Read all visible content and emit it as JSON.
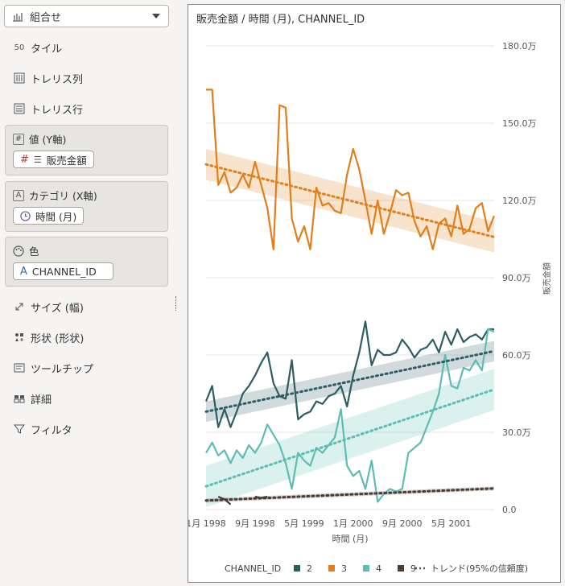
{
  "panel": {
    "chart_type": "組合せ",
    "rows": {
      "tile": "タイル",
      "trellis_col": "トレリス列",
      "trellis_row": "トレリス行",
      "size": "サイズ (幅)",
      "shape": "形状 (形状)",
      "tooltip": "ツールチップ",
      "detail": "詳細",
      "filter": "フィルタ"
    },
    "values_box": {
      "title": "値 (Y軸)",
      "pill": "販売金額"
    },
    "category_box": {
      "title": "カテゴリ (X軸)",
      "pill": "時間 (月)"
    },
    "color_box": {
      "title": "色",
      "pill": "CHANNEL_ID"
    }
  },
  "chart_data": {
    "type": "line",
    "title": "販売金額 / 時間 (月), CHANNEL_ID",
    "xlabel": "時間 (月)",
    "ylabel": "販売金額",
    "y_ticks": [
      "0.0",
      "30.0万",
      "60.0万",
      "90.0万",
      "120.0万",
      "150.0万",
      "180.0万"
    ],
    "ylim": [
      0,
      1800000
    ],
    "x_ticks": [
      {
        "label": "1月 1998",
        "index": 0
      },
      {
        "label": "9月 1998",
        "index": 8
      },
      {
        "label": "5月 1999",
        "index": 16
      },
      {
        "label": "1月 2000",
        "index": 24
      },
      {
        "label": "9月 2000",
        "index": 32
      },
      {
        "label": "5月 2001",
        "index": 40
      }
    ],
    "n_months": 48,
    "legend_title": "CHANNEL_ID",
    "trend_label": "トレンド(95%の信頼度)",
    "grid": true,
    "series": [
      {
        "name": "2",
        "color": "#2c5d63",
        "values": [
          420000,
          480000,
          320000,
          390000,
          320000,
          380000,
          450000,
          480000,
          520000,
          570000,
          610000,
          490000,
          440000,
          430000,
          580000,
          350000,
          370000,
          380000,
          420000,
          410000,
          440000,
          450000,
          480000,
          400000,
          520000,
          610000,
          730000,
          560000,
          620000,
          600000,
          600000,
          610000,
          660000,
          630000,
          590000,
          620000,
          630000,
          660000,
          610000,
          690000,
          640000,
          700000,
          650000,
          670000,
          680000,
          660000,
          700000,
          700000
        ],
        "trend": [
          380000,
          385000,
          390000,
          395000,
          400000,
          405000,
          410000,
          415000,
          420000,
          425000,
          430000,
          435000,
          440000,
          445000,
          450000,
          455000,
          460000,
          465000,
          470000,
          475000,
          480000,
          485000,
          490000,
          495000,
          500000,
          505000,
          510000,
          515000,
          520000,
          525000,
          530000,
          535000,
          540000,
          545000,
          550000,
          555000,
          560000,
          565000,
          570000,
          575000,
          580000,
          585000,
          590000,
          595000,
          600000,
          605000,
          610000,
          615000
        ]
      },
      {
        "name": "3",
        "color": "#e07f1b",
        "values": [
          1630000,
          1630000,
          1260000,
          1310000,
          1230000,
          1250000,
          1300000,
          1250000,
          1350000,
          1260000,
          1170000,
          1010000,
          1570000,
          1560000,
          1130000,
          1040000,
          1100000,
          1010000,
          1250000,
          1180000,
          1190000,
          1160000,
          1150000,
          1300000,
          1400000,
          1320000,
          1200000,
          1070000,
          1200000,
          1070000,
          1150000,
          1240000,
          1220000,
          1230000,
          1120000,
          1060000,
          1100000,
          1010000,
          1110000,
          1130000,
          1060000,
          1180000,
          1070000,
          1090000,
          1170000,
          1190000,
          1080000,
          1140000
        ],
        "trend": [
          1340000,
          1334000,
          1328000,
          1322000,
          1316000,
          1310000,
          1304000,
          1298000,
          1292000,
          1286000,
          1280000,
          1274000,
          1268000,
          1262000,
          1256000,
          1250000,
          1244000,
          1238000,
          1232000,
          1226000,
          1220000,
          1214000,
          1208000,
          1202000,
          1196000,
          1190000,
          1184000,
          1178000,
          1172000,
          1166000,
          1160000,
          1154000,
          1148000,
          1142000,
          1136000,
          1130000,
          1124000,
          1118000,
          1112000,
          1106000,
          1100000,
          1094000,
          1088000,
          1082000,
          1076000,
          1070000,
          1064000,
          1058000
        ]
      },
      {
        "name": "4",
        "color": "#5dbdb3",
        "values": [
          220000,
          260000,
          210000,
          230000,
          180000,
          230000,
          200000,
          250000,
          220000,
          260000,
          330000,
          290000,
          250000,
          180000,
          80000,
          220000,
          190000,
          170000,
          240000,
          220000,
          250000,
          280000,
          390000,
          170000,
          130000,
          150000,
          80000,
          190000,
          30000,
          60000,
          80000,
          70000,
          80000,
          220000,
          240000,
          260000,
          320000,
          380000,
          450000,
          600000,
          480000,
          470000,
          550000,
          540000,
          580000,
          540000,
          700000,
          690000
        ],
        "trend": [
          90000,
          98000,
          106000,
          114000,
          122000,
          130000,
          138000,
          146000,
          154000,
          162000,
          170000,
          178000,
          186000,
          194000,
          202000,
          210000,
          218000,
          226000,
          234000,
          242000,
          250000,
          258000,
          266000,
          274000,
          282000,
          290000,
          298000,
          306000,
          314000,
          322000,
          330000,
          338000,
          346000,
          354000,
          362000,
          370000,
          378000,
          386000,
          394000,
          402000,
          410000,
          418000,
          426000,
          434000,
          442000,
          450000,
          458000,
          466000
        ]
      },
      {
        "name": "9",
        "color": "#4a3c33",
        "segments": [
          [
            [
              2,
              50000
            ],
            [
              3,
              40000
            ],
            [
              4,
              20000
            ]
          ],
          [
            [
              8,
              50000
            ],
            [
              9,
              45000
            ],
            [
              10,
              50000
            ]
          ]
        ],
        "trend": [
          35000,
          36000,
          37000,
          38000,
          39000,
          40000,
          41000,
          42000,
          43000,
          44000,
          45000,
          46000,
          47000,
          48000,
          49000,
          50000,
          51000,
          52000,
          53000,
          54000,
          55000,
          56000,
          57000,
          58000,
          59000,
          60000,
          61000,
          62000,
          63000,
          64000,
          65000,
          66000,
          67000,
          68000,
          69000,
          70000,
          71000,
          72000,
          73000,
          74000,
          75000,
          76000,
          77000,
          78000,
          79000,
          80000,
          81000,
          82000
        ]
      }
    ]
  }
}
